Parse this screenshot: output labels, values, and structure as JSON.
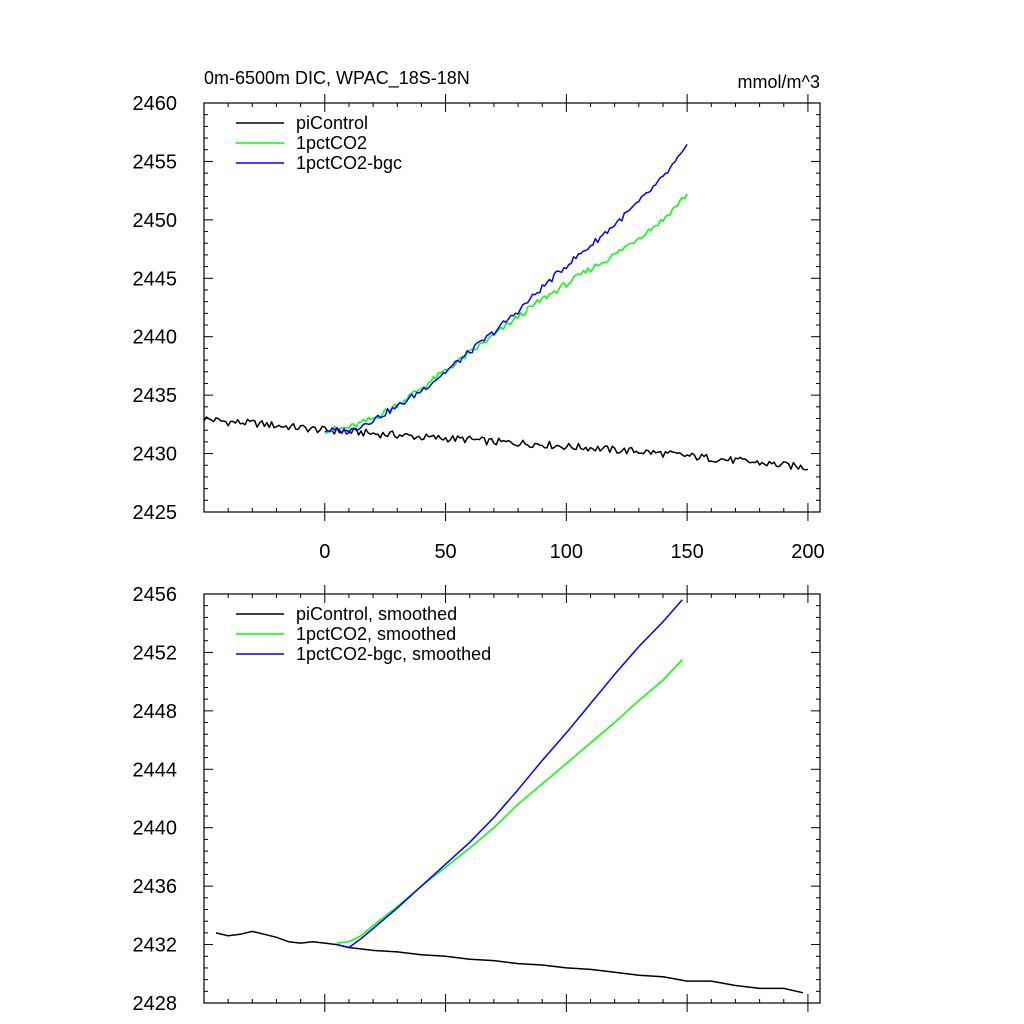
{
  "figure": {
    "title_left": "0m-6500m DIC, WPAC_18S-18N",
    "title_right": "mmol/m^3"
  },
  "chart_data": [
    {
      "type": "line",
      "xlim": [
        -50,
        205
      ],
      "ylim": [
        2425,
        2460
      ],
      "xticks": [
        0,
        50,
        100,
        150,
        200
      ],
      "yticks": [
        2425,
        2430,
        2435,
        2440,
        2445,
        2450,
        2455,
        2460
      ],
      "xtick_labels_shown": true,
      "legend": {
        "placement": "top-left"
      },
      "grid": false,
      "series": [
        {
          "name": "piControl",
          "color": "#000000",
          "key": "pi_raw",
          "x": [
            -50,
            -40,
            -30,
            -20,
            -10,
            0,
            10,
            20,
            30,
            40,
            50,
            60,
            70,
            80,
            90,
            100,
            110,
            120,
            130,
            140,
            150,
            160,
            170,
            180,
            190,
            200
          ],
          "values": [
            2433.0,
            2432.7,
            2432.6,
            2432.4,
            2432.2,
            2432.0,
            2431.9,
            2431.7,
            2431.6,
            2431.4,
            2431.3,
            2431.2,
            2431.0,
            2430.9,
            2430.8,
            2430.6,
            2430.5,
            2430.3,
            2430.2,
            2430.0,
            2429.8,
            2429.6,
            2429.4,
            2429.2,
            2429.0,
            2428.8
          ]
        },
        {
          "name": "1pctCO2",
          "color": "#00ff00",
          "key": "pct_raw",
          "x": [
            0,
            10,
            20,
            30,
            40,
            50,
            60,
            70,
            80,
            90,
            100,
            110,
            120,
            130,
            140,
            150
          ],
          "values": [
            2432.0,
            2432.2,
            2433.0,
            2434.2,
            2435.6,
            2437.1,
            2438.6,
            2440.1,
            2441.7,
            2443.2,
            2444.5,
            2445.8,
            2447.0,
            2448.5,
            2450.0,
            2452.2
          ]
        },
        {
          "name": "1pctCO2-bgc",
          "color": "#0000ff",
          "key": "bgc_raw",
          "x": [
            0,
            10,
            20,
            30,
            40,
            50,
            60,
            70,
            80,
            90,
            100,
            110,
            120,
            130,
            140,
            150
          ],
          "values": [
            2432.0,
            2431.9,
            2432.9,
            2434.0,
            2435.4,
            2437.0,
            2438.7,
            2440.4,
            2442.2,
            2444.2,
            2446.1,
            2447.8,
            2449.6,
            2451.5,
            2453.6,
            2456.2
          ]
        }
      ]
    },
    {
      "type": "line",
      "xlim": [
        -50,
        205
      ],
      "ylim": [
        2428,
        2456
      ],
      "xticks": [
        0,
        50,
        100,
        150,
        200
      ],
      "yticks": [
        2428,
        2432,
        2436,
        2440,
        2444,
        2448,
        2452,
        2456
      ],
      "xtick_labels_shown": false,
      "legend": {
        "placement": "top-left"
      },
      "grid": false,
      "series": [
        {
          "name": "piControl, smoothed",
          "color": "#000000",
          "key": "pi_smooth",
          "x": [
            -45,
            -40,
            -35,
            -30,
            -25,
            -20,
            -15,
            -10,
            -5,
            0,
            5,
            10,
            20,
            30,
            40,
            50,
            60,
            70,
            80,
            90,
            100,
            110,
            120,
            130,
            140,
            150,
            160,
            170,
            180,
            190,
            198
          ],
          "values": [
            2432.8,
            2432.6,
            2432.7,
            2432.9,
            2432.7,
            2432.5,
            2432.2,
            2432.1,
            2432.2,
            2432.1,
            2432.0,
            2431.8,
            2431.6,
            2431.5,
            2431.3,
            2431.2,
            2431.0,
            2430.9,
            2430.7,
            2430.6,
            2430.4,
            2430.3,
            2430.1,
            2429.9,
            2429.8,
            2429.5,
            2429.5,
            2429.2,
            2429.0,
            2429.0,
            2428.7
          ]
        },
        {
          "name": "1pctCO2, smoothed",
          "color": "#00ff00",
          "key": "pct_smooth",
          "x": [
            5,
            10,
            15,
            20,
            30,
            40,
            50,
            60,
            70,
            80,
            90,
            100,
            110,
            120,
            130,
            140,
            148
          ],
          "values": [
            2432.1,
            2432.2,
            2432.6,
            2433.3,
            2434.6,
            2436.0,
            2437.3,
            2438.6,
            2440.0,
            2441.6,
            2443.0,
            2444.4,
            2445.8,
            2447.2,
            2448.7,
            2450.1,
            2451.5
          ]
        },
        {
          "name": "1pctCO2-bgc, smoothed",
          "color": "#0000ff",
          "key": "bgc_smooth",
          "x": [
            5,
            10,
            15,
            20,
            30,
            40,
            50,
            60,
            70,
            80,
            90,
            100,
            110,
            120,
            130,
            140,
            148
          ],
          "values": [
            2432.0,
            2431.8,
            2432.4,
            2433.1,
            2434.5,
            2436.0,
            2437.5,
            2439.0,
            2440.7,
            2442.6,
            2444.6,
            2446.5,
            2448.5,
            2450.5,
            2452.4,
            2454.1,
            2455.6
          ]
        }
      ]
    }
  ]
}
